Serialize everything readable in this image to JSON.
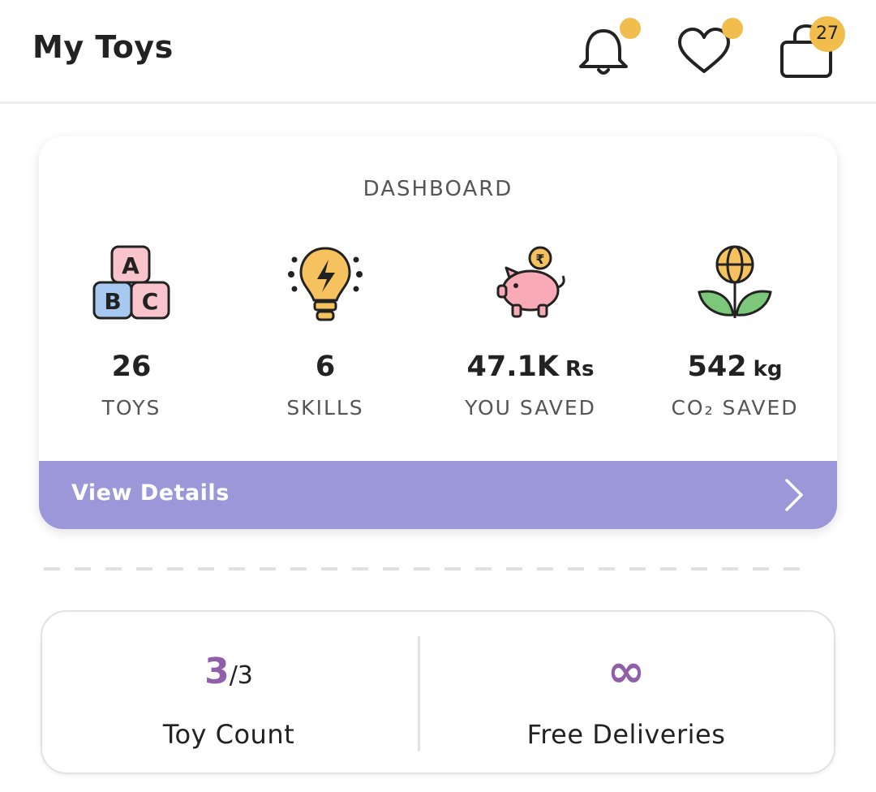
{
  "header": {
    "title": "My Toys",
    "icons": [
      "bell-icon",
      "heart-icon",
      "shopping-bag-icon"
    ],
    "cart_count": "27",
    "badge_color": "#f1bd4c"
  },
  "dashboard": {
    "title": "DASHBOARD",
    "stats": [
      {
        "icon": "abc-blocks-icon",
        "value": "26",
        "unit": "",
        "label": "TOYS"
      },
      {
        "icon": "lightbulb-icon",
        "value": "6",
        "unit": "",
        "label": "SKILLS"
      },
      {
        "icon": "piggy-bank-icon",
        "value": "47.1K",
        "unit": "Rs",
        "label": "YOU SAVED"
      },
      {
        "icon": "globe-plant-icon",
        "value": "542",
        "unit": "kg",
        "label": "CO₂ SAVED"
      }
    ],
    "view_details": "View Details",
    "accent_color": "#9b97d9"
  },
  "subscription": {
    "toy_count": {
      "current": "3",
      "total": "/3",
      "label": "Toy Count"
    },
    "free_deliveries": {
      "value": "∞",
      "label": "Free Deliveries"
    },
    "accent_color": "#8f5fa9"
  }
}
